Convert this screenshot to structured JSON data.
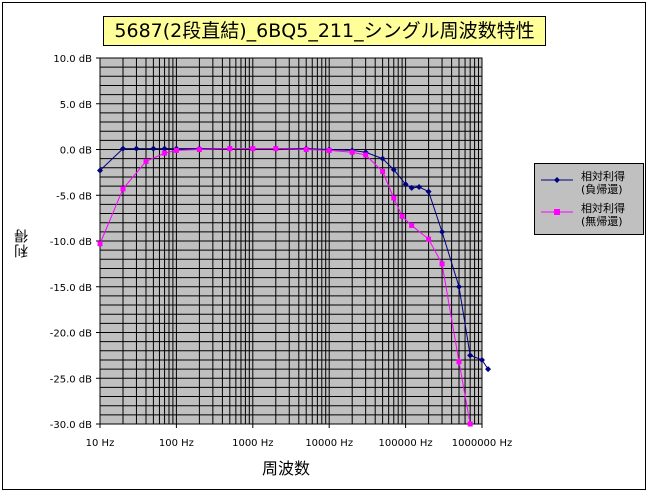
{
  "chart_data": {
    "type": "line",
    "title": "5687(2段直結)_6BQ5_211_シングル周波数特性",
    "xlabel": "周波数",
    "ylabel": "利得",
    "x_scale": "log",
    "xlim": [
      10,
      1000000
    ],
    "ylim": [
      -30,
      10
    ],
    "grid": true,
    "legend_position": "right",
    "x_tick_labels": [
      "10 Hz",
      "100 Hz",
      "1000 Hz",
      "10000 Hz",
      "100000 Hz",
      "1000000 Hz"
    ],
    "x_ticks": [
      10,
      100,
      1000,
      10000,
      100000,
      1000000
    ],
    "y_tick_labels": [
      "10.0 dB",
      "5.0 dB",
      "0.0 dB",
      "-5.0 dB",
      "-10.0 dB",
      "-15.0 dB",
      "-20.0 dB",
      "-25.0 dB",
      "-30.0 dB"
    ],
    "y_ticks": [
      10,
      5,
      0,
      -5,
      -10,
      -15,
      -20,
      -25,
      -30
    ],
    "series": [
      {
        "name": "相対利得 (負帰還)",
        "legend_lines": [
          "相対利得",
          "(負帰還)"
        ],
        "color": "#000080",
        "marker": "diamond",
        "points": [
          [
            10,
            -2.3
          ],
          [
            20,
            0.1
          ],
          [
            30,
            0.1
          ],
          [
            50,
            0.1
          ],
          [
            70,
            0.1
          ],
          [
            100,
            0.1
          ],
          [
            200,
            0.1
          ],
          [
            500,
            0.1
          ],
          [
            1000,
            0.1
          ],
          [
            2000,
            0.1
          ],
          [
            5000,
            0.1
          ],
          [
            10000,
            0.0
          ],
          [
            20000,
            -0.1
          ],
          [
            30000,
            -0.3
          ],
          [
            50000,
            -1.0
          ],
          [
            70000,
            -2.2
          ],
          [
            100000,
            -3.8
          ],
          [
            120000,
            -4.2
          ],
          [
            150000,
            -4.1
          ],
          [
            200000,
            -4.6
          ],
          [
            300000,
            -9.0
          ],
          [
            500000,
            -15.0
          ],
          [
            700000,
            -22.5
          ],
          [
            1000000,
            -23.0
          ],
          [
            1200000,
            -24.0
          ]
        ]
      },
      {
        "name": "相対利得 (無帰還)",
        "legend_lines": [
          "相対利得",
          "(無帰還)"
        ],
        "color": "#ff00ff",
        "marker": "square",
        "points": [
          [
            10,
            -10.3
          ],
          [
            20,
            -4.3
          ],
          [
            40,
            -1.3
          ],
          [
            70,
            -0.4
          ],
          [
            100,
            -0.1
          ],
          [
            200,
            0.0
          ],
          [
            500,
            0.1
          ],
          [
            1000,
            0.1
          ],
          [
            2000,
            0.1
          ],
          [
            5000,
            0.0
          ],
          [
            10000,
            -0.1
          ],
          [
            20000,
            -0.3
          ],
          [
            30000,
            -0.6
          ],
          [
            50000,
            -2.4
          ],
          [
            70000,
            -5.3
          ],
          [
            90000,
            -7.3
          ],
          [
            120000,
            -8.3
          ],
          [
            200000,
            -9.8
          ],
          [
            300000,
            -12.5
          ],
          [
            500000,
            -23.2
          ],
          [
            700000,
            -30.0
          ]
        ]
      }
    ]
  }
}
